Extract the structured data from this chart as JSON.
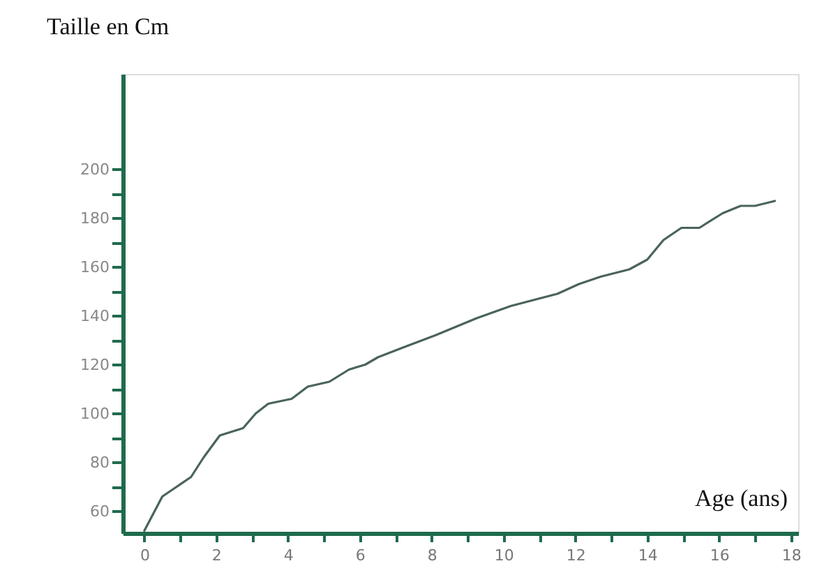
{
  "chart_data": {
    "type": "line",
    "ylabel": "Taille en Cm",
    "xlabel": "Age (ans)",
    "x": [
      0,
      0.5,
      1.3,
      1.65,
      2.1,
      2.75,
      3.1,
      3.45,
      4.1,
      4.55,
      5.15,
      5.7,
      6.15,
      6.5,
      7.2,
      8.1,
      9.25,
      10.2,
      11.5,
      12.1,
      12.7,
      13.5,
      14,
      14.45,
      14.95,
      15.45,
      16.1,
      16.6,
      17,
      17.55
    ],
    "series": [
      {
        "color": "#4a6458",
        "values": [
          52,
          66,
          74,
          82,
          91,
          94,
          100,
          104,
          106,
          111,
          113,
          118,
          120,
          123,
          127,
          132,
          139,
          144,
          149,
          153,
          156,
          159,
          163,
          171,
          176,
          176,
          182,
          185,
          185,
          187
        ]
      }
    ],
    "xlim": [
      -0.6,
      18.2
    ],
    "ylim": [
      51,
      239
    ],
    "xticks": [
      0,
      {
        "value": 1,
        "label": null
      },
      2,
      {
        "value": 3,
        "label": null
      },
      4,
      {
        "value": 5,
        "label": null
      },
      6,
      {
        "value": 7,
        "label": null
      },
      8,
      {
        "value": 9,
        "label": null
      },
      10,
      {
        "value": 11,
        "label": null
      },
      12,
      {
        "value": 13,
        "label": null
      },
      14,
      {
        "value": 15,
        "label": null
      },
      16,
      {
        "value": 17,
        "label": null
      },
      18
    ],
    "yticks": [
      60,
      {
        "value": 70,
        "label": null
      },
      80,
      {
        "value": 90,
        "label": null
      },
      100,
      {
        "value": 110,
        "label": null
      },
      120,
      {
        "value": 130,
        "label": null
      },
      140,
      {
        "value": 150,
        "label": null
      },
      160,
      {
        "value": 170,
        "label": null
      },
      180,
      {
        "value": 190,
        "label": null
      },
      200
    ],
    "grid": false,
    "marker": "none",
    "line_style": "solid"
  }
}
